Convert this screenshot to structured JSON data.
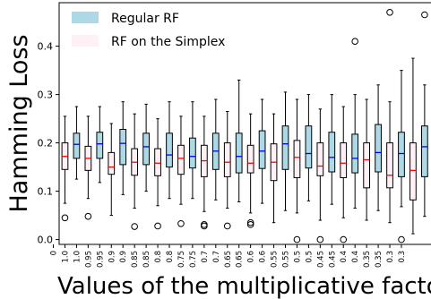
{
  "chart_data": {
    "type": "box",
    "xlabel": "Values of the multiplicative factor",
    "ylabel": "Hamming Loss",
    "ylim": [
      -0.01,
      0.49
    ],
    "yticks": [
      0.0,
      0.1,
      0.2,
      0.3,
      0.4
    ],
    "ytick_labels": [
      "0.0",
      "0.1",
      "0.2",
      "0.3",
      "0.4"
    ],
    "xtick_labels": [
      "0",
      "1.0",
      "1.0",
      "0.95",
      "0.95",
      "0.9",
      "0.9",
      "0.85",
      "0.85",
      "0.8",
      "0.8",
      "0.75",
      "0.75",
      "0.7",
      "0.7",
      "0.65",
      "0.65",
      "0.6",
      "0.6",
      "0.55",
      "0.55",
      "0.5",
      "0.5",
      "0.45",
      "0.45",
      "0.4",
      "0.4",
      "0.35",
      "0.35",
      "0.3",
      "0.3"
    ],
    "legend": {
      "placement": "top-left",
      "entries": [
        {
          "label": "Regular RF",
          "color": "#add8e6"
        },
        {
          "label": "RF on the Simplex",
          "color": "#fff0f5"
        }
      ]
    },
    "colors": {
      "regular": "#add8e6",
      "simplex": "#fff0f5",
      "regular_median": "#0000ff",
      "simplex_median": "#ff0000"
    },
    "boxes": [
      {
        "pos": 1,
        "series": "simplex",
        "whislo": 0.075,
        "q1": 0.145,
        "med": 0.172,
        "q3": 0.2,
        "whishi": 0.255,
        "fliers": [
          0.045
        ]
      },
      {
        "pos": 2,
        "series": "regular",
        "whislo": 0.125,
        "q1": 0.168,
        "med": 0.197,
        "q3": 0.22,
        "whishi": 0.275,
        "fliers": []
      },
      {
        "pos": 3,
        "series": "simplex",
        "whislo": 0.085,
        "q1": 0.143,
        "med": 0.168,
        "q3": 0.193,
        "whishi": 0.255,
        "fliers": [
          0.048
        ]
      },
      {
        "pos": 4,
        "series": "regular",
        "whislo": 0.118,
        "q1": 0.168,
        "med": 0.198,
        "q3": 0.222,
        "whishi": 0.275,
        "fliers": []
      },
      {
        "pos": 5,
        "series": "simplex",
        "whislo": 0.05,
        "q1": 0.135,
        "med": 0.15,
        "q3": 0.18,
        "whishi": 0.24,
        "fliers": []
      },
      {
        "pos": 6,
        "series": "regular",
        "whislo": 0.093,
        "q1": 0.155,
        "med": 0.199,
        "q3": 0.228,
        "whishi": 0.285,
        "fliers": []
      },
      {
        "pos": 7,
        "series": "simplex",
        "whislo": 0.065,
        "q1": 0.133,
        "med": 0.16,
        "q3": 0.188,
        "whishi": 0.26,
        "fliers": [
          0.027
        ]
      },
      {
        "pos": 8,
        "series": "regular",
        "whislo": 0.1,
        "q1": 0.155,
        "med": 0.192,
        "q3": 0.22,
        "whishi": 0.28,
        "fliers": []
      },
      {
        "pos": 9,
        "series": "simplex",
        "whislo": 0.07,
        "q1": 0.132,
        "med": 0.158,
        "q3": 0.188,
        "whishi": 0.25,
        "fliers": [
          0.028
        ]
      },
      {
        "pos": 10,
        "series": "regular",
        "whislo": 0.085,
        "q1": 0.15,
        "med": 0.175,
        "q3": 0.22,
        "whishi": 0.285,
        "fliers": []
      },
      {
        "pos": 11,
        "series": "simplex",
        "whislo": 0.073,
        "q1": 0.135,
        "med": 0.168,
        "q3": 0.195,
        "whishi": 0.255,
        "fliers": [
          0.033
        ]
      },
      {
        "pos": 12,
        "series": "regular",
        "whislo": 0.085,
        "q1": 0.148,
        "med": 0.172,
        "q3": 0.21,
        "whishi": 0.285,
        "fliers": []
      },
      {
        "pos": 13,
        "series": "simplex",
        "whislo": 0.058,
        "q1": 0.13,
        "med": 0.163,
        "q3": 0.195,
        "whishi": 0.255,
        "fliers": [
          0.028,
          0.031
        ]
      },
      {
        "pos": 14,
        "series": "regular",
        "whislo": 0.082,
        "q1": 0.145,
        "med": 0.183,
        "q3": 0.22,
        "whishi": 0.29,
        "fliers": []
      },
      {
        "pos": 15,
        "series": "simplex",
        "whislo": 0.065,
        "q1": 0.13,
        "med": 0.16,
        "q3": 0.2,
        "whishi": 0.265,
        "fliers": [
          0.028
        ]
      },
      {
        "pos": 16,
        "series": "regular",
        "whislo": 0.078,
        "q1": 0.138,
        "med": 0.172,
        "q3": 0.22,
        "whishi": 0.33,
        "fliers": []
      },
      {
        "pos": 17,
        "series": "simplex",
        "whislo": 0.055,
        "q1": 0.138,
        "med": 0.158,
        "q3": 0.195,
        "whishi": 0.26,
        "fliers": [
          0.031,
          0.035
        ]
      },
      {
        "pos": 18,
        "series": "regular",
        "whislo": 0.075,
        "q1": 0.147,
        "med": 0.183,
        "q3": 0.225,
        "whishi": 0.29,
        "fliers": []
      },
      {
        "pos": 19,
        "series": "simplex",
        "whislo": 0.035,
        "q1": 0.122,
        "med": 0.16,
        "q3": 0.198,
        "whishi": 0.26,
        "fliers": []
      },
      {
        "pos": 20,
        "series": "regular",
        "whislo": 0.06,
        "q1": 0.145,
        "med": 0.198,
        "q3": 0.235,
        "whishi": 0.305,
        "fliers": []
      },
      {
        "pos": 21,
        "series": "simplex",
        "whislo": 0.055,
        "q1": 0.128,
        "med": 0.17,
        "q3": 0.205,
        "whishi": 0.29,
        "fliers": [
          0.0
        ]
      },
      {
        "pos": 22,
        "series": "regular",
        "whislo": 0.08,
        "q1": 0.148,
        "med": 0.178,
        "q3": 0.235,
        "whishi": 0.3,
        "fliers": []
      },
      {
        "pos": 23,
        "series": "simplex",
        "whislo": 0.04,
        "q1": 0.132,
        "med": 0.152,
        "q3": 0.2,
        "whishi": 0.27,
        "fliers": [
          0.0
        ]
      },
      {
        "pos": 24,
        "series": "regular",
        "whislo": 0.073,
        "q1": 0.14,
        "med": 0.17,
        "q3": 0.222,
        "whishi": 0.3,
        "fliers": []
      },
      {
        "pos": 25,
        "series": "simplex",
        "whislo": 0.045,
        "q1": 0.128,
        "med": 0.158,
        "q3": 0.2,
        "whishi": 0.275,
        "fliers": [
          0.0
        ]
      },
      {
        "pos": 26,
        "series": "regular",
        "whislo": 0.065,
        "q1": 0.138,
        "med": 0.168,
        "q3": 0.218,
        "whishi": 0.3,
        "fliers": [
          0.41
        ]
      },
      {
        "pos": 27,
        "series": "simplex",
        "whislo": 0.04,
        "q1": 0.107,
        "med": 0.165,
        "q3": 0.2,
        "whishi": 0.29,
        "fliers": []
      },
      {
        "pos": 28,
        "series": "regular",
        "whislo": 0.06,
        "q1": 0.14,
        "med": 0.18,
        "q3": 0.238,
        "whishi": 0.32,
        "fliers": []
      },
      {
        "pos": 29,
        "series": "simplex",
        "whislo": 0.035,
        "q1": 0.107,
        "med": 0.133,
        "q3": 0.2,
        "whishi": 0.285,
        "fliers": [
          0.47
        ]
      },
      {
        "pos": 30,
        "series": "regular",
        "whislo": 0.068,
        "q1": 0.13,
        "med": 0.178,
        "q3": 0.222,
        "whishi": 0.35,
        "fliers": [
          0.0
        ]
      },
      {
        "pos": 31,
        "series": "simplex",
        "whislo": 0.012,
        "q1": 0.082,
        "med": 0.143,
        "q3": 0.2,
        "whishi": 0.375,
        "fliers": []
      },
      {
        "pos": 32,
        "series": "regular",
        "whislo": 0.048,
        "q1": 0.13,
        "med": 0.192,
        "q3": 0.235,
        "whishi": 0.32,
        "fliers": [
          0.465
        ]
      }
    ]
  }
}
